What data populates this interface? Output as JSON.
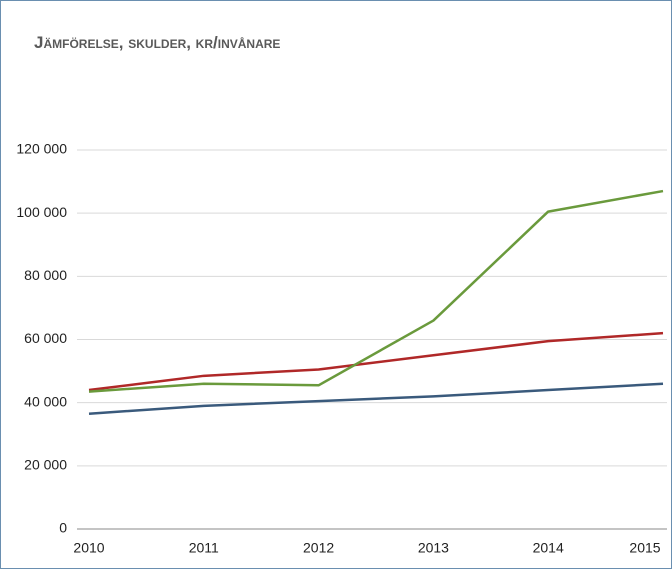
{
  "chart_data": {
    "type": "line",
    "title": "Jämförelse, skulder, kr/invånare",
    "categories": [
      "2010",
      "2011",
      "2012",
      "2013",
      "2014",
      "2015"
    ],
    "series": [
      {
        "color": "#3a5a7c",
        "values": [
          36500,
          39000,
          40500,
          42000,
          44000,
          46000
        ]
      },
      {
        "color": "#b02828",
        "values": [
          44000,
          48500,
          50500,
          55000,
          59500,
          62000
        ]
      },
      {
        "color": "#6a9a3c",
        "values": [
          43500,
          46000,
          45500,
          66000,
          100500,
          107000
        ]
      }
    ],
    "ylim": [
      0,
      120000
    ],
    "yticks": [
      0,
      {
        "value": 20000,
        "label": "20 000"
      },
      {
        "value": 40000,
        "label": "40 000"
      },
      {
        "value": 60000,
        "label": "60 000"
      },
      {
        "value": 80000,
        "label": "80 000"
      },
      {
        "value": 100000,
        "label": "100 000"
      },
      {
        "value": 120000,
        "label": "120 000"
      }
    ],
    "grid": true
  }
}
